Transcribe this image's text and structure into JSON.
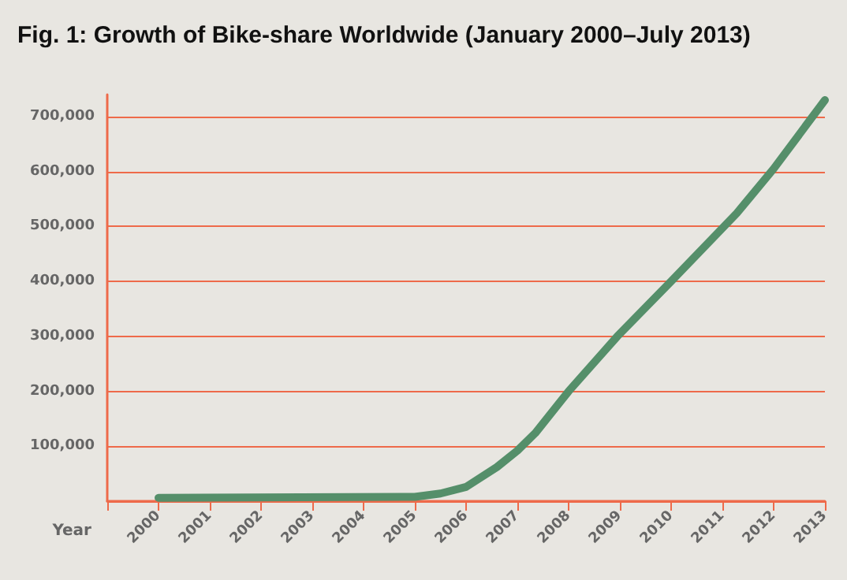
{
  "chart_data": {
    "type": "line",
    "title": "Fig. 1: Growth of Bike-share Worldwide (January 2000–July 2013)",
    "xlabel": "Year",
    "series": [
      {
        "color": "#558f6a",
        "x": [
          2000,
          2005,
          2005.5,
          2006,
          2006.6,
          2007,
          2007.35,
          2008,
          2008.95,
          2010,
          2011.28,
          2012,
          2013
        ],
        "values": [
          6000,
          8000,
          14000,
          26000,
          62000,
          92000,
          124000,
          200000,
          300000,
          400000,
          524000,
          605000,
          730000
        ]
      }
    ],
    "xlim": [
      1999,
      2013
    ],
    "xticks": [
      {
        "value": 1999,
        "label": null
      },
      2000,
      2001,
      2002,
      2003,
      2004,
      2005,
      2006,
      2007,
      2008,
      2009,
      2010,
      2011,
      2012,
      2013
    ],
    "ylim": [
      0,
      740000
    ],
    "yticks": [
      {
        "value": 0,
        "label": null
      },
      {
        "value": 100000,
        "label": "100,000"
      },
      {
        "value": 200000,
        "label": "200,000"
      },
      {
        "value": 300000,
        "label": "300,000"
      },
      {
        "value": 400000,
        "label": "400,000"
      },
      {
        "value": 500000,
        "label": "500,000"
      },
      {
        "value": 600000,
        "label": "600,000"
      },
      {
        "value": 700000,
        "label": "700,000"
      }
    ],
    "grid": "y",
    "marker": "none",
    "line_style": "solid"
  }
}
